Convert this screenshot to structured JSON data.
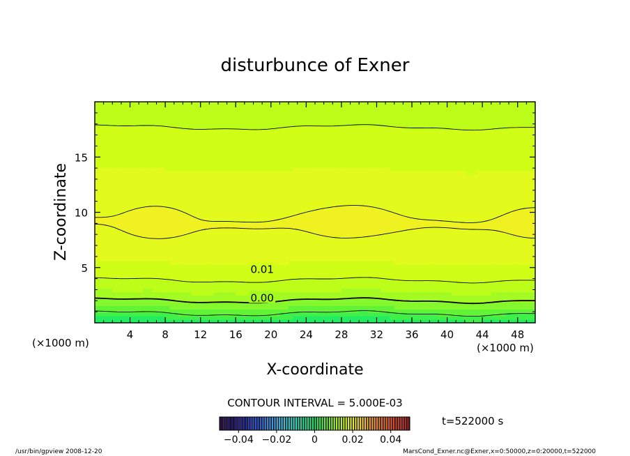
{
  "chart_data": {
    "type": "heatmap",
    "title": "disturbunce of Exner",
    "xlabel": "X-coordinate",
    "ylabel": "Z-coordinate",
    "x_unit": "(×1000 m)",
    "x_unit_right": "(×1000 m)",
    "xlim": [
      0,
      50
    ],
    "ylim": [
      0,
      20
    ],
    "x_ticks": [
      "4",
      "8",
      "12",
      "16",
      "20",
      "24",
      "28",
      "32",
      "36",
      "40",
      "44",
      "48"
    ],
    "y_ticks": [
      "5",
      "10",
      "15"
    ],
    "contour_interval_text": "CONTOUR INTERVAL = 5.000E-03",
    "contour_labels": [
      {
        "text": "0.01",
        "x": 19.0,
        "z": 4.9
      },
      {
        "text": "0.00",
        "x": 19.0,
        "z": 2.3
      }
    ],
    "colorbar": {
      "min": -0.05,
      "max": 0.05,
      "tick_labels": [
        "−0.04",
        "−0.02",
        "0",
        "0.02",
        "0.04"
      ],
      "tick_values": [
        -0.04,
        -0.02,
        0,
        0.02,
        0.04
      ]
    },
    "time_label": "t=522000 s",
    "footer_left": "/usr/bin/gpview   2008-12-20",
    "footer_right": "MarsCond_Exner.nc@Exner,x=0:50000,z=0:20000,t=522000",
    "field_notes": {
      "max_value_region": {
        "x": [
          4.5,
          9.5
        ],
        "z": [
          8.0,
          10.0
        ],
        "value": 0.025
      },
      "min_value_bottom": 0.0
    }
  }
}
